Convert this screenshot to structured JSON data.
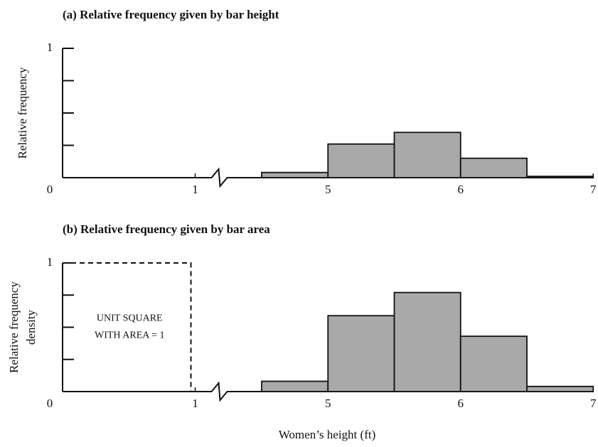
{
  "chart_data": [
    {
      "type": "histogram",
      "title": "(a) Relative frequency given by bar height",
      "ylabel": [
        "Relative frequency"
      ],
      "bins": [
        4.5,
        5,
        5.5,
        6,
        6.5,
        7
      ],
      "values": [
        0.04,
        0.26,
        0.35,
        0.15,
        0.01
      ],
      "color": "#a9a9a9",
      "xlim": [
        0,
        7
      ],
      "axis_break": [
        1,
        4.5
      ],
      "xticks": [
        0,
        1,
        5,
        6,
        7
      ],
      "ylim": [
        0,
        1
      ],
      "yticks": [
        0.25,
        0.5,
        0.75,
        1
      ]
    },
    {
      "type": "histogram",
      "title": "(b) Relative frequency given by bar area",
      "ylabel": [
        "Relative frequency",
        "density"
      ],
      "bins": [
        4.5,
        5,
        5.5,
        6,
        6.5,
        7
      ],
      "values": [
        0.08,
        0.59,
        0.77,
        0.43,
        0.04
      ],
      "color": "#a9a9a9",
      "xlim": [
        0,
        7
      ],
      "axis_break": [
        1,
        4.5
      ],
      "xticks": [
        0,
        1,
        5,
        6,
        7
      ],
      "ylim": [
        0,
        1
      ],
      "yticks": [
        0.25,
        0.5,
        0.75,
        1
      ],
      "unit_square": [
        "UNIT SQUARE",
        "WITH AREA = 1"
      ],
      "xlabel": "Women’s height (ft)"
    }
  ]
}
